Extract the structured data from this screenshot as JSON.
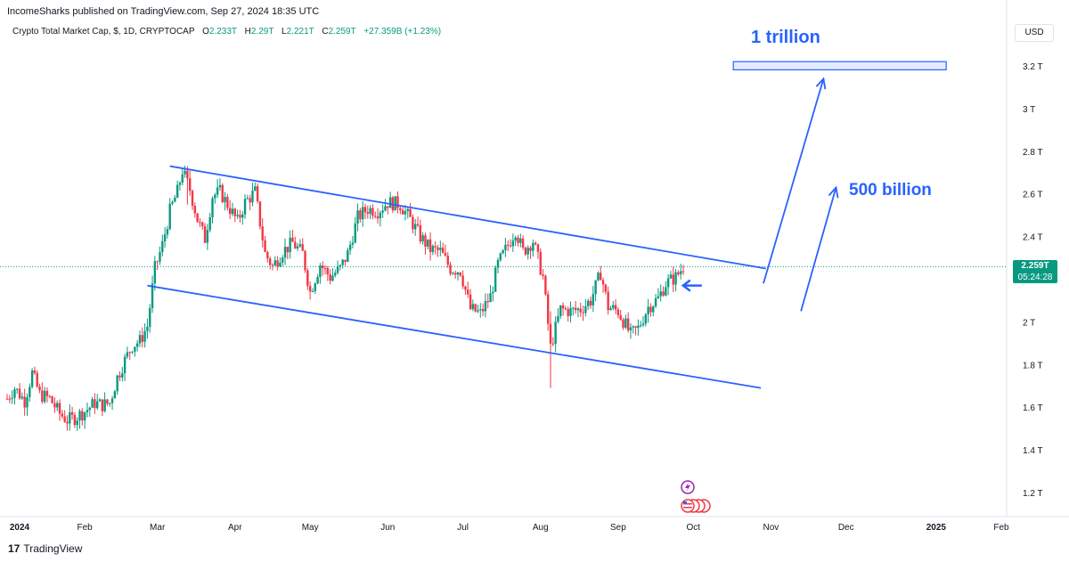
{
  "header": {
    "publisher": "IncomeSharks published on TradingView.com, Sep 27, 2024 18:35 UTC"
  },
  "legend": {
    "symbol": "Crypto Total Market Cap, $, 1D, CRYPTOCAP",
    "open_label": "O",
    "open": "2.233T",
    "high_label": "H",
    "high": "2.29T",
    "low_label": "L",
    "low": "2.221T",
    "close_label": "C",
    "close": "2.259T",
    "change": "+27.359B (+1.23%)"
  },
  "currency_button": "USD",
  "price_tag": {
    "price": "2.259T",
    "countdown": "05:24:28"
  },
  "annotations": {
    "target_high": "1 trillion",
    "target_mid": "500 billion"
  },
  "footer": {
    "brand": "TradingView",
    "logo_glyph": "17"
  },
  "colors": {
    "up": "#089981",
    "down": "#f23645",
    "accent": "#2962ff",
    "axis_text": "#131722"
  },
  "chart_data": {
    "type": "candlestick",
    "symbol": "Crypto Total Market Cap, $, 1D, CRYPTOCAP",
    "ylim": [
      1.1,
      3.35
    ],
    "y_ticks": [
      "3.2 T",
      "3 T",
      "2.8 T",
      "2.6 T",
      "2.4 T",
      "2.2 T",
      "2 T",
      "1.8 T",
      "1.6 T",
      "1.4 T",
      "1.2 T"
    ],
    "y_tick_values": [
      3.2,
      3.0,
      2.8,
      2.6,
      2.4,
      2.2,
      2.0,
      1.8,
      1.6,
      1.4,
      1.2
    ],
    "x_ticks": [
      {
        "label": "2024",
        "date": "2024-01-01",
        "bold": true
      },
      {
        "label": "Feb",
        "date": "2024-02-01"
      },
      {
        "label": "Mar",
        "date": "2024-03-01"
      },
      {
        "label": "Apr",
        "date": "2024-04-01"
      },
      {
        "label": "May",
        "date": "2024-05-01"
      },
      {
        "label": "Jun",
        "date": "2024-06-01"
      },
      {
        "label": "Jul",
        "date": "2024-07-01"
      },
      {
        "label": "Aug",
        "date": "2024-08-01"
      },
      {
        "label": "Sep",
        "date": "2024-09-01"
      },
      {
        "label": "Oct",
        "date": "2024-10-01"
      },
      {
        "label": "Nov",
        "date": "2024-11-01"
      },
      {
        "label": "Dec",
        "date": "2024-12-01"
      },
      {
        "label": "2025",
        "date": "2025-01-01",
        "bold": true
      },
      {
        "label": "Feb",
        "date": "2025-02-01"
      }
    ],
    "close_series": [
      [
        "2024-01-01",
        1.64
      ],
      [
        "2024-01-04",
        1.69
      ],
      [
        "2024-01-08",
        1.63
      ],
      [
        "2024-01-11",
        1.76
      ],
      [
        "2024-01-14",
        1.66
      ],
      [
        "2024-01-18",
        1.64
      ],
      [
        "2024-01-22",
        1.57
      ],
      [
        "2024-01-25",
        1.54
      ],
      [
        "2024-01-28",
        1.55
      ],
      [
        "2024-02-01",
        1.58
      ],
      [
        "2024-02-05",
        1.62
      ],
      [
        "2024-02-08",
        1.61
      ],
      [
        "2024-02-11",
        1.62
      ],
      [
        "2024-02-14",
        1.74
      ],
      [
        "2024-02-17",
        1.82
      ],
      [
        "2024-02-20",
        1.89
      ],
      [
        "2024-02-23",
        1.91
      ],
      [
        "2024-02-26",
        1.98
      ],
      [
        "2024-02-29",
        2.25
      ],
      [
        "2024-03-03",
        2.36
      ],
      [
        "2024-03-06",
        2.52
      ],
      [
        "2024-03-09",
        2.61
      ],
      [
        "2024-03-11",
        2.71
      ],
      [
        "2024-03-14",
        2.62
      ],
      [
        "2024-03-17",
        2.48
      ],
      [
        "2024-03-20",
        2.39
      ],
      [
        "2024-03-23",
        2.59
      ],
      [
        "2024-03-26",
        2.61
      ],
      [
        "2024-03-29",
        2.55
      ],
      [
        "2024-04-02",
        2.47
      ],
      [
        "2024-04-05",
        2.56
      ],
      [
        "2024-04-09",
        2.61
      ],
      [
        "2024-04-13",
        2.32
      ],
      [
        "2024-04-16",
        2.26
      ],
      [
        "2024-04-20",
        2.33
      ],
      [
        "2024-04-24",
        2.37
      ],
      [
        "2024-04-28",
        2.32
      ],
      [
        "2024-05-01",
        2.14
      ],
      [
        "2024-05-05",
        2.27
      ],
      [
        "2024-05-09",
        2.21
      ],
      [
        "2024-05-13",
        2.25
      ],
      [
        "2024-05-16",
        2.32
      ],
      [
        "2024-05-20",
        2.49
      ],
      [
        "2024-05-24",
        2.53
      ],
      [
        "2024-05-28",
        2.52
      ],
      [
        "2024-06-01",
        2.56
      ],
      [
        "2024-06-06",
        2.55
      ],
      [
        "2024-06-10",
        2.48
      ],
      [
        "2024-06-14",
        2.4
      ],
      [
        "2024-06-18",
        2.34
      ],
      [
        "2024-06-22",
        2.33
      ],
      [
        "2024-06-26",
        2.25
      ],
      [
        "2024-06-30",
        2.24
      ],
      [
        "2024-07-04",
        2.06
      ],
      [
        "2024-07-08",
        2.04
      ],
      [
        "2024-07-12",
        2.12
      ],
      [
        "2024-07-15",
        2.27
      ],
      [
        "2024-07-19",
        2.36
      ],
      [
        "2024-07-22",
        2.43
      ],
      [
        "2024-07-25",
        2.33
      ],
      [
        "2024-07-29",
        2.38
      ],
      [
        "2024-08-02",
        2.21
      ],
      [
        "2024-08-05",
        1.88
      ],
      [
        "2024-08-09",
        2.06
      ],
      [
        "2024-08-13",
        2.05
      ],
      [
        "2024-08-17",
        2.06
      ],
      [
        "2024-08-21",
        2.1
      ],
      [
        "2024-08-25",
        2.23
      ],
      [
        "2024-08-28",
        2.07
      ],
      [
        "2024-09-01",
        2.05
      ],
      [
        "2024-09-06",
        1.94
      ],
      [
        "2024-09-09",
        1.97
      ],
      [
        "2024-09-13",
        2.07
      ],
      [
        "2024-09-17",
        2.11
      ],
      [
        "2024-09-20",
        2.18
      ],
      [
        "2024-09-24",
        2.21
      ],
      [
        "2024-09-27",
        2.259
      ]
    ],
    "overlays": [
      {
        "kind": "channel-upper",
        "from": [
          "2024-03-06",
          2.73
        ],
        "to": [
          "2024-10-30",
          2.25
        ]
      },
      {
        "kind": "channel-lower",
        "from": [
          "2024-02-26",
          2.17
        ],
        "to": [
          "2024-10-28",
          1.69
        ]
      },
      {
        "kind": "arrow",
        "from": [
          "2024-10-29",
          2.18
        ],
        "to": [
          "2024-11-22",
          3.14
        ]
      },
      {
        "kind": "arrow",
        "from": [
          "2024-11-13",
          2.05
        ],
        "to": [
          "2024-11-27",
          2.63
        ]
      },
      {
        "kind": "target-box",
        "from": [
          "2024-10-17",
          3.22
        ],
        "to": [
          "2025-01-10",
          3.19
        ]
      },
      {
        "kind": "marker-arrow",
        "at": [
          "2024-09-28",
          2.17
        ]
      }
    ],
    "last_price": 2.259
  }
}
